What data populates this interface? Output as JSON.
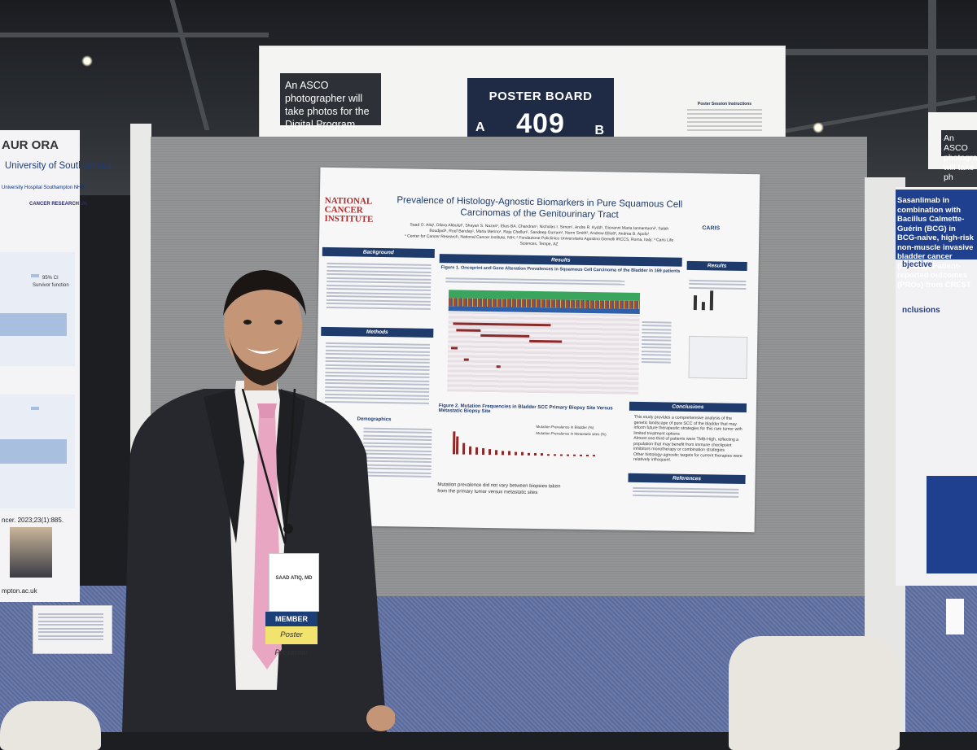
{
  "scene": {
    "photo_notice": "An ASCO photographer will take photos for the Digital Program.",
    "board": {
      "title": "POSTER BOARD",
      "number": "409",
      "side_a": "A",
      "side_b": "B"
    },
    "instructions_title": "Poster Session Instructions"
  },
  "poster": {
    "logo": "NATIONAL CANCER INSTITUTE",
    "title": "Prevalence of Histology-Agnostic Biomarkers in Pure Squamous Cell Carcinomas of the Genitourinary Tract",
    "authors": "Saad O. Atiq¹, Dilara Akbulut¹, Shayan S. Nazari¹, Elias BA. Chandran¹, Nicholas I. Simon¹, Andre R. Kydd¹, Giovanni Maria Iannantuoni², Salah Boudjadi¹, Rouf Banday¹, Maria Merino¹, Raju Chelluri¹, Sandeep Gurram¹, Norm Smith², Andrew Elliott³, Andrea B. Apolo¹",
    "affiliations": "¹ Center for Cancer Research, National Cancer Institute, NIH; ² Fondazione Policlinico Universitario Agostino Gemelli IRCCS, Roma, Italy; ³ Caris Life Sciences, Tempe, AZ",
    "caris": "CARIS",
    "sections": {
      "background": "Background",
      "methods": "Methods",
      "demographics": "Demographics",
      "results_main": "Results",
      "results_side": "Results",
      "conclusions": "Conclusions",
      "references": "References"
    },
    "figure1_caption": "Figure 1. Oncoprint and Gene Alteration Prevalences in Squamous Cell Carcinoma of the Bladder in 169 patients",
    "figure2_caption": "Figure 2. Mutation Frequencies in Bladder SCC Primary Biopsy Site Versus Metastatic Biopsy Site",
    "legend_bladder": "Mutation Prevalence in Bladder (%)",
    "legend_metastatic": "Mutation Prevalence in Metastatic sites (%)",
    "figure2_note": "Mutation prevalence did not vary between biopsies taken from the primary tumor versus metastatic sites",
    "conclusion_1": "This study provides a comprehensive analysis of the genetic landscape of pure SCC of the bladder that may inform future therapeutic strategies for this rare tumor with limited treatment options",
    "conclusion_2": "Almost one-third of patients were TMB-High, reflecting a population that may benefit from immune checkpoint inhibitors monotherapy or combination strategies",
    "conclusion_3": "Other histology-agnostic targets for current therapies were relatively infrequent."
  },
  "left_poster": {
    "aurora": "AUR ORA",
    "university": "University of Southampton",
    "nhs": "University Hospital Southampton NHS",
    "cancer_research": "CANCER RESEARCH UK",
    "legend_ci": "95% CI",
    "legend_survivor": "Survivor function",
    "citation": "ncer. 2023;23(1):885.",
    "url": "mpton.ac.uk"
  },
  "right_poster": {
    "title": "Sasanlimab in combination with Bacillus Calmette-Guérin (BCG) in BCG-naive, high-risk non-muscle invasive bladder cancer (NMIBC): Patient-reported outcomes (PROs) from CREST",
    "objective": "bjective",
    "conclusions": "nclusions",
    "sign_text": "An ASCO photographer will take ph"
  },
  "badge": {
    "name": "SAAD ATIQ, MD",
    "member": "MEMBER",
    "ribbon": "Poster Presenter"
  },
  "colors": {
    "poster_navy": "#1f3b6b",
    "board_label": "#1f2a44",
    "tie_pink": "#e9a6c2",
    "suit": "#26282d"
  }
}
